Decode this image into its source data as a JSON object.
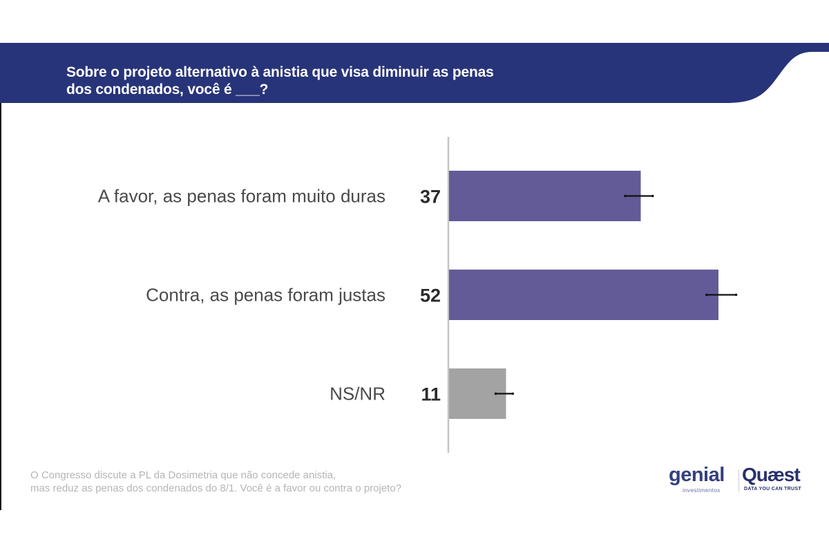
{
  "header": {
    "title_line1": "Sobre o projeto alternativo à anistia que visa diminuir as penas",
    "title_line2": "dos condenados, você é ___?",
    "color": "#283479"
  },
  "chart_data": {
    "type": "bar",
    "orientation": "horizontal",
    "title": "Sobre o projeto alternativo à anistia que visa diminuir as penas dos condenados, você é ___?",
    "xlabel": "",
    "ylabel": "",
    "unit": "%",
    "xlim": [
      0,
      60
    ],
    "grid": false,
    "categories": [
      "A favor, as penas foram muito duras",
      "Contra, as penas foram justas",
      "NS/NR"
    ],
    "values": [
      37,
      52,
      11
    ],
    "value_labels": [
      "37",
      "52",
      "11"
    ],
    "error_bars": [
      {
        "low": 34,
        "high": 39.3
      },
      {
        "low": 49.7,
        "high": 55.4
      },
      {
        "low": 9,
        "high": 12.3
      }
    ],
    "colors": [
      "#625b97",
      "#625b97",
      "#a3a3a3"
    ]
  },
  "footer": {
    "note_line1": "O Congresso discute a PL da Dosimetria que não concede anistia,",
    "note_line2": "mas reduz as penas dos condenados do 8/1. Você é a favor ou contra o projeto?",
    "logo_genial": "genial",
    "logo_genial_sub": "investimentos",
    "logo_quaest": "Quæst",
    "logo_quaest_sub": "DATA YOU CAN TRUST"
  }
}
